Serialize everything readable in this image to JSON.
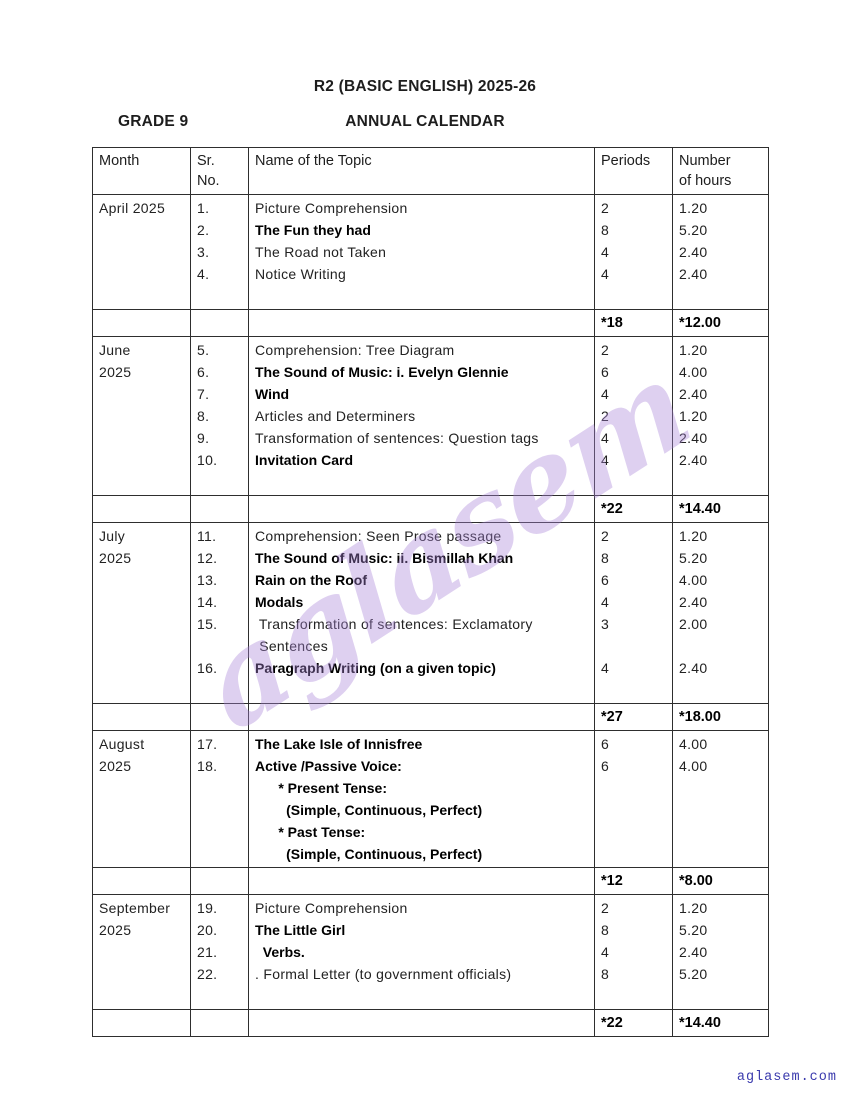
{
  "header": {
    "title": "R2 (BASIC ENGLISH) 2025-26",
    "grade": "GRADE 9",
    "subtitle": "ANNUAL CALENDAR"
  },
  "page": {
    "watermark": "aglasem",
    "footer": "aglasem.com"
  },
  "colors": {
    "footer_link": "#3a3aad",
    "watermark": "#a784d8",
    "table_border": "#2e2e2e",
    "page_background": "#ffffff"
  },
  "table": {
    "headers": {
      "month": "Month",
      "sr_line1": "Sr.",
      "sr_line2": "No.",
      "topic": "Name of the Topic",
      "periods": "Periods",
      "hours_line1": "Number",
      "hours_line2": "of hours"
    },
    "sections": [
      {
        "month_lines": [
          "April 2025"
        ],
        "rows": [
          {
            "n": "1.",
            "t": "Picture Comprehension",
            "p": "2",
            "h": "1.20",
            "b": false
          },
          {
            "n": "2.",
            "t": "The Fun they had",
            "p": "8",
            "h": "5.20",
            "b": true
          },
          {
            "n": "3.",
            "t": "The Road not Taken",
            "p": "4",
            "h": "2.40",
            "b": false
          },
          {
            "n": "4.",
            "t": "Notice Writing",
            "p": "4",
            "h": "2.40",
            "b": false
          },
          {
            "n": "",
            "t": "",
            "p": "",
            "h": "",
            "b": false
          }
        ],
        "total": {
          "periods": "*18",
          "hours": "*12.00"
        }
      },
      {
        "month_lines": [
          "June",
          "2025"
        ],
        "rows": [
          {
            "n": "5.",
            "t": "Comprehension: Tree Diagram",
            "p": "2",
            "h": "1.20",
            "b": false
          },
          {
            "n": "6.",
            "t": "The Sound of Music: i. Evelyn Glennie",
            "p": "6",
            "h": "4.00",
            "b": true
          },
          {
            "n": "7.",
            "t": "Wind",
            "p": "4",
            "h": "2.40",
            "b": true
          },
          {
            "n": "8.",
            "t": "Articles and Determiners",
            "p": "2",
            "h": "1.20",
            "b": false
          },
          {
            "n": "9.",
            "t": "Transformation of sentences: Question tags",
            "p": "4",
            "h": "2.40",
            "b": false
          },
          {
            "n": "10.",
            "t": "Invitation Card",
            "p": "4",
            "h": "2.40",
            "b": true
          },
          {
            "n": "",
            "t": "",
            "p": "",
            "h": "",
            "b": false
          }
        ],
        "total": {
          "periods": "*22",
          "hours": "*14.40"
        }
      },
      {
        "month_lines": [
          "July",
          "2025"
        ],
        "rows": [
          {
            "n": "11.",
            "t": "Comprehension: Seen Prose passage",
            "p": "2",
            "h": "1.20",
            "b": false
          },
          {
            "n": "12.",
            "t": "The Sound of Music: ii. Bismillah Khan",
            "p": "8",
            "h": "5.20",
            "b": true
          },
          {
            "n": "13.",
            "t": "Rain on the Roof",
            "p": "6",
            "h": "4.00",
            "b": true
          },
          {
            "n": "14.",
            "t": "Modals",
            "p": "4",
            "h": "2.40",
            "b": true
          },
          {
            "n": "15.",
            "t": " Transformation of sentences: Exclamatory",
            "p": "3",
            "h": "2.00",
            "b": false
          },
          {
            "n": "",
            "t": " Sentences",
            "p": "",
            "h": "",
            "b": false
          },
          {
            "n": "16.",
            "t": "Paragraph Writing (on a given topic)",
            "p": "4",
            "h": "2.40",
            "b": true
          },
          {
            "n": "",
            "t": "",
            "p": "",
            "h": "",
            "b": false
          }
        ],
        "total": {
          "periods": "*27",
          "hours": "*18.00"
        }
      },
      {
        "month_lines": [
          "August",
          "2025"
        ],
        "rows": [
          {
            "n": "17.",
            "t": "The Lake Isle of Innisfree",
            "p": "6",
            "h": "4.00",
            "b": true
          },
          {
            "n": "18.",
            "t": "Active /Passive Voice:",
            "p": "6",
            "h": "4.00",
            "b": true
          },
          {
            "n": "",
            "t": "      * Present Tense:",
            "p": "",
            "h": "",
            "b": true
          },
          {
            "n": "",
            "t": "        (Simple, Continuous, Perfect)",
            "p": "",
            "h": "",
            "b": true
          },
          {
            "n": "",
            "t": "      * Past Tense:",
            "p": "",
            "h": "",
            "b": true
          },
          {
            "n": "",
            "t": "        (Simple, Continuous, Perfect)",
            "p": "",
            "h": "",
            "b": true
          }
        ],
        "total": {
          "periods": "*12",
          "hours": "*8.00"
        }
      },
      {
        "month_lines": [
          "September",
          "2025"
        ],
        "rows": [
          {
            "n": "19.",
            "t": "Picture Comprehension",
            "p": "2",
            "h": "1.20",
            "b": false
          },
          {
            "n": "20.",
            "t": "The Little Girl",
            "p": "8",
            "h": "5.20",
            "b": true
          },
          {
            "n": "21.",
            "t": "  Verbs.",
            "p": "4",
            "h": "2.40",
            "b": true
          },
          {
            "n": "22.",
            "t": ". Formal Letter (to government officials)",
            "p": "8",
            "h": "5.20",
            "b": false
          },
          {
            "n": "",
            "t": "",
            "p": "",
            "h": "",
            "b": false
          }
        ],
        "total": {
          "periods": "*22",
          "hours": "*14.40"
        }
      }
    ]
  }
}
